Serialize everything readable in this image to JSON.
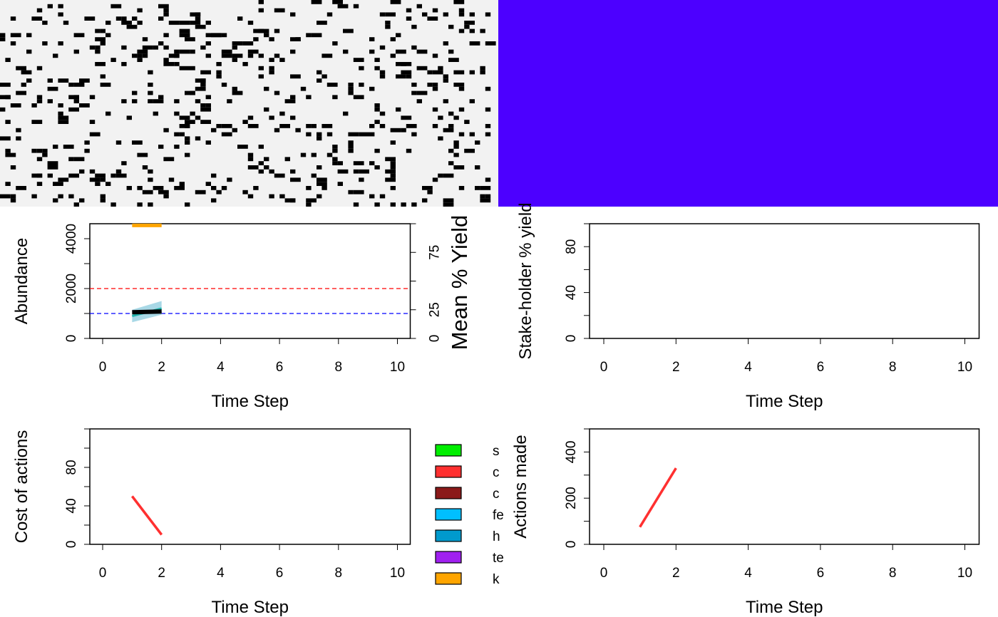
{
  "colors": {
    "landscape_bg": "#f2f2f2",
    "landscape_cell": "#000000",
    "ownership_fill": "#4c00ff",
    "resource_line": "#000000",
    "observed_line": "#20b2aa",
    "ci_band": "#a8d8e6",
    "manager_target": "#ff0000",
    "user_target": "#0000ff",
    "yield_line": "#ffa500",
    "cost_line": "#ff3030",
    "actions_line": "#ff3030"
  },
  "chart_data": [
    {
      "id": "landscape",
      "type": "heatmap",
      "title": "",
      "description_values": "binary landscape occupancy map (light grey background, black cells)",
      "palette": [
        "#f2f2f2",
        "#000000"
      ]
    },
    {
      "id": "ownership",
      "type": "heatmap",
      "title": "",
      "palette": [
        "#4c00ff"
      ]
    },
    {
      "id": "abundance",
      "type": "line",
      "xlabel": "Time Step",
      "ylabel": "Abundance",
      "y2label": "Mean % Yield",
      "xlim": [
        0,
        10
      ],
      "ylim": [
        0,
        4600
      ],
      "y2lim": [
        0,
        100
      ],
      "xticks": [
        "0",
        "2",
        "4",
        "6",
        "8",
        "10"
      ],
      "yticks": [
        "0",
        "2000",
        "4000"
      ],
      "y2ticks": [
        "0",
        "25",
        "75"
      ],
      "series": [
        {
          "role": "resource",
          "x": [
            1,
            2
          ],
          "y": [
            1050,
            1080
          ]
        },
        {
          "role": "observed",
          "x": [
            1,
            2
          ],
          "y": [
            900,
            1200
          ]
        },
        {
          "role": "ci_band",
          "x": [
            1,
            2
          ],
          "lower": [
            650,
            950
          ],
          "upper": [
            1150,
            1500
          ]
        },
        {
          "role": "yield",
          "axis": "right",
          "x": [
            1,
            2
          ],
          "y": [
            98.5,
            98.5
          ]
        }
      ],
      "hlines": [
        {
          "role": "manager_target",
          "y": 2000
        },
        {
          "role": "user_target",
          "y": 1000
        }
      ]
    },
    {
      "id": "stakeholder",
      "type": "line",
      "xlabel": "Time Step",
      "ylabel": "Stake-holder % yield",
      "xlim": [
        0,
        10
      ],
      "ylim": [
        0,
        100
      ],
      "xticks": [
        "0",
        "2",
        "4",
        "6",
        "8",
        "10"
      ],
      "yticks": [
        "0",
        "40",
        "80"
      ],
      "series": []
    },
    {
      "id": "cost",
      "type": "line",
      "xlabel": "Time Step",
      "ylabel": "Cost of actions",
      "xlim": [
        0,
        10
      ],
      "ylim": [
        0,
        120
      ],
      "xticks": [
        "0",
        "2",
        "4",
        "6",
        "8",
        "10"
      ],
      "yticks": [
        "0",
        "40",
        "80"
      ],
      "series": [
        {
          "role": "culling",
          "x": [
            1,
            2
          ],
          "y": [
            50,
            10
          ]
        }
      ],
      "legend": {
        "position": "right",
        "entries": [
          {
            "label": "s",
            "color": "#00ee00"
          },
          {
            "label": "c",
            "color": "#ff3030"
          },
          {
            "label": "c",
            "color": "#8b1a1a"
          },
          {
            "label": "fe",
            "color": "#00bfff"
          },
          {
            "label": "h",
            "color": "#009acd"
          },
          {
            "label": "te",
            "color": "#a020f0"
          },
          {
            "label": "k",
            "color": "#ffa500"
          }
        ]
      }
    },
    {
      "id": "actions",
      "type": "line",
      "xlabel": "Time Step",
      "ylabel": "Actions made",
      "xlim": [
        0,
        10
      ],
      "ylim": [
        0,
        500
      ],
      "xticks": [
        "0",
        "2",
        "4",
        "6",
        "8",
        "10"
      ],
      "yticks": [
        "0",
        "200",
        "400"
      ],
      "series": [
        {
          "role": "culling",
          "x": [
            1,
            2
          ],
          "y": [
            75,
            330
          ]
        }
      ]
    }
  ]
}
